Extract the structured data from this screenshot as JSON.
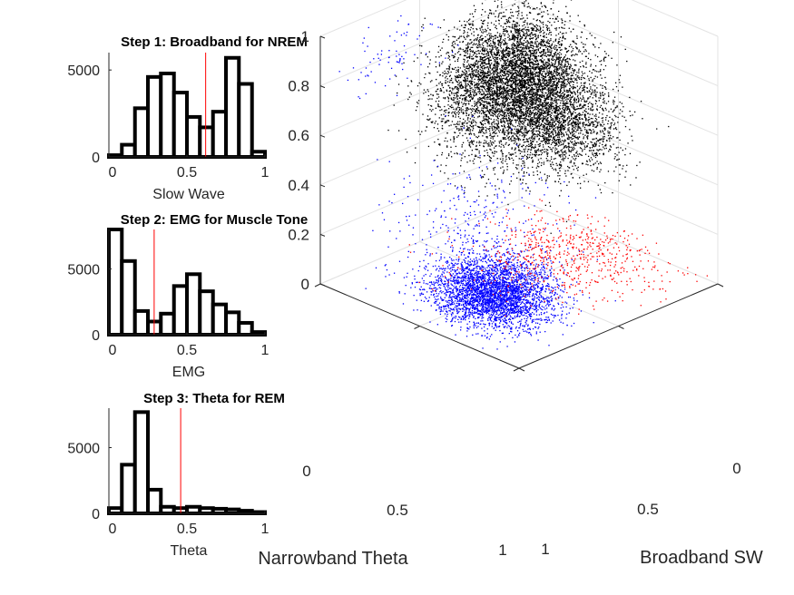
{
  "histograms": [
    {
      "title": "Step 1: Broadband for NREM",
      "xlabel": "Slow Wave",
      "xlim": [
        0,
        1
      ],
      "ylim": [
        0,
        6000
      ],
      "yticks": [
        0,
        5000
      ],
      "ytick_labels": [
        "0",
        "5000"
      ],
      "xticks": [
        0,
        0.5,
        1
      ],
      "xtick_labels": [
        "0",
        "0.5",
        "1"
      ],
      "bin_edges": [
        0,
        0.083,
        0.167,
        0.25,
        0.333,
        0.417,
        0.5,
        0.583,
        0.667,
        0.75,
        0.833,
        0.917,
        1.0
      ],
      "counts": [
        100,
        700,
        2800,
        4600,
        4800,
        3700,
        2300,
        1700,
        2600,
        5700,
        4200,
        300
      ],
      "threshold": 0.62
    },
    {
      "title": "Step 2: EMG for Muscle Tone",
      "xlabel": "EMG",
      "xlim": [
        0,
        1
      ],
      "ylim": [
        0,
        8000
      ],
      "yticks": [
        0,
        5000
      ],
      "ytick_labels": [
        "0",
        "5000"
      ],
      "xticks": [
        0,
        0.5,
        1
      ],
      "xtick_labels": [
        "0",
        "0.5",
        "1"
      ],
      "bin_edges": [
        0,
        0.083,
        0.167,
        0.25,
        0.333,
        0.417,
        0.5,
        0.583,
        0.667,
        0.75,
        0.833,
        0.917,
        1.0
      ],
      "counts": [
        8000,
        5600,
        1800,
        1000,
        1600,
        3700,
        4600,
        3300,
        2300,
        1700,
        900,
        200
      ],
      "threshold": 0.29
    },
    {
      "title": "Step 3: Theta for REM",
      "xlabel": "Theta",
      "xlim": [
        0,
        1
      ],
      "ylim": [
        0,
        8000
      ],
      "yticks": [
        0,
        5000
      ],
      "ytick_labels": [
        "0",
        "5000"
      ],
      "xticks": [
        0,
        0.5,
        1
      ],
      "xtick_labels": [
        "0",
        "0.5",
        "1"
      ],
      "bin_edges": [
        0,
        0.083,
        0.167,
        0.25,
        0.333,
        0.417,
        0.5,
        0.583,
        0.667,
        0.75,
        0.833,
        0.917,
        1.0
      ],
      "counts": [
        400,
        3700,
        7700,
        1800,
        500,
        400,
        500,
        400,
        350,
        300,
        200,
        100
      ],
      "threshold": 0.46
    }
  ],
  "chart_data": {
    "type": "scatter",
    "axes3d": {
      "xlabel": "Narrowband Theta",
      "ylabel": "Broadband SW",
      "zlabel": "",
      "xlim": [
        0,
        1
      ],
      "ylim": [
        0,
        1
      ],
      "zlim": [
        0,
        1
      ],
      "x_tick_labels": [
        "0",
        "0.5",
        "1"
      ],
      "y_tick_labels": [
        "0",
        "0.5",
        "1"
      ],
      "z_tick_labels": [
        "0",
        "0.2",
        "0.4",
        "0.6",
        "0.8",
        "1"
      ],
      "grid": true
    },
    "clusters": [
      {
        "color": "#000000",
        "count": 9000,
        "center": [
          0.15,
          0.18,
          0.62
        ],
        "spread": [
          0.18,
          0.17,
          0.12
        ]
      },
      {
        "color": "#000000",
        "count": 1500,
        "center": [
          0.35,
          0.12,
          0.45
        ],
        "spread": [
          0.12,
          0.14,
          0.08
        ]
      },
      {
        "color": "#0000ff",
        "count": 3800,
        "center": [
          0.62,
          0.75,
          0.08
        ],
        "spread": [
          0.12,
          0.1,
          0.06
        ]
      },
      {
        "color": "#0000ff",
        "count": 350,
        "center": [
          0.35,
          0.6,
          0.22
        ],
        "spread": [
          0.18,
          0.15,
          0.12
        ]
      },
      {
        "color": "#0000ff",
        "count": 120,
        "center": [
          0.02,
          0.7,
          0.85
        ],
        "spread": [
          0.08,
          0.12,
          0.06
        ]
      },
      {
        "color": "#ff0000",
        "count": 900,
        "center": [
          0.5,
          0.22,
          0.03
        ],
        "spread": [
          0.2,
          0.2,
          0.03
        ]
      }
    ]
  }
}
